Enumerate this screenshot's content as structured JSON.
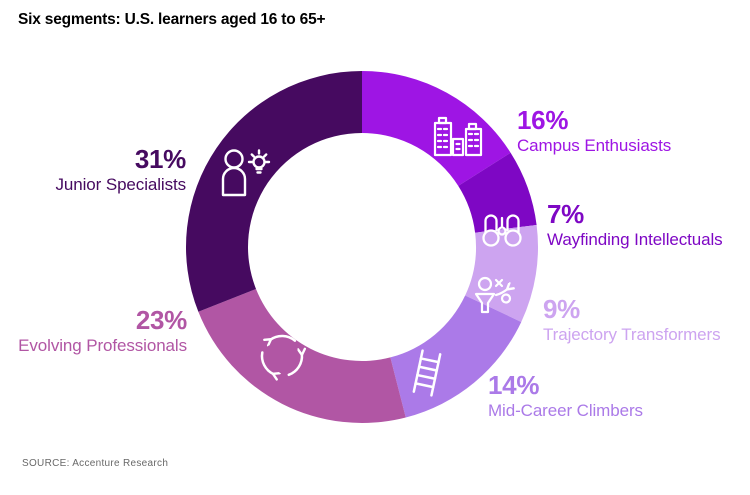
{
  "title": "Six segments: U.S. learners aged 16 to 65+",
  "source": "SOURCE: Accenture Research",
  "chart_data": {
    "type": "pie",
    "subtype": "donut",
    "title": "Six segments: U.S. learners aged 16 to 65+",
    "unit": "%",
    "direction": "clockwise",
    "start_angle_deg": 0,
    "hole_ratio": 0.65,
    "legend_position": "callouts-around-donut",
    "background": "#ffffff",
    "segments": [
      {
        "label": "Campus Enthusiasts",
        "value": 16,
        "display": "16%",
        "color": "#9e15e4",
        "icon": "buildings-icon"
      },
      {
        "label": "Wayfinding Intellectuals",
        "value": 7,
        "display": "7%",
        "color": "#7e07c4",
        "icon": "binoculars-icon"
      },
      {
        "label": "Trajectory Transformers",
        "value": 9,
        "display": "9%",
        "color": "#cda4f0",
        "icon": "strategy-play-icon"
      },
      {
        "label": "Mid-Career Climbers",
        "value": 14,
        "display": "14%",
        "color": "#ab7ae8",
        "icon": "ladder-icon"
      },
      {
        "label": "Evolving Professionals",
        "value": 23,
        "display": "23%",
        "color": "#b156a4",
        "icon": "cycle-arrows-icon"
      },
      {
        "label": "Junior Specialists",
        "value": 31,
        "display": "31%",
        "color": "#460a60",
        "icon": "person-lightbulb-icon"
      }
    ]
  }
}
